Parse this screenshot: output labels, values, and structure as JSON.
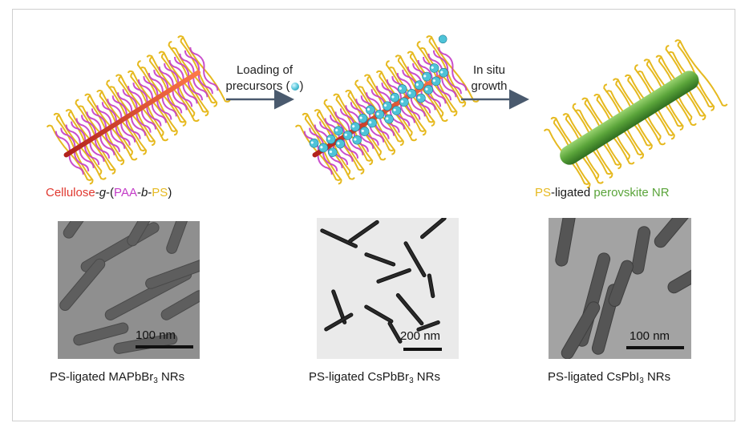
{
  "arrows": {
    "first": {
      "line1": "Loading of",
      "line2": "precursors (",
      "line2_end": ")"
    },
    "second": {
      "line1": "In situ",
      "line2": "growth"
    }
  },
  "left_label": {
    "part1": "Cellulose",
    "dash1": "-",
    "part2": "g",
    "dash2": "-(",
    "part3": "PAA",
    "dash3": "-",
    "part4": "b",
    "dash4": "-",
    "part5": "PS",
    "close": ")"
  },
  "right_label": {
    "part1": "PS",
    "part2": "-ligated ",
    "part3": "perovskite NR"
  },
  "panels": [
    {
      "scale": "100 nm",
      "caption_pre": "PS-ligated MAPbBr",
      "caption_sub": "3",
      "caption_post": " NRs"
    },
    {
      "scale": "200 nm",
      "caption_pre": "PS-ligated CsPbBr",
      "caption_sub": "3",
      "caption_post": " NRs"
    },
    {
      "scale": "100 nm",
      "caption_pre": "PS-ligated CsPbI",
      "caption_sub": "3",
      "caption_post": " NRs"
    }
  ],
  "colors": {
    "cellulose": "#e0382f",
    "paa": "#c33cc7",
    "ps": "#e6b91f",
    "perovskite": "#5aa43a",
    "precursor": "#4ec3d8",
    "arrow": "#4a5a6e"
  }
}
